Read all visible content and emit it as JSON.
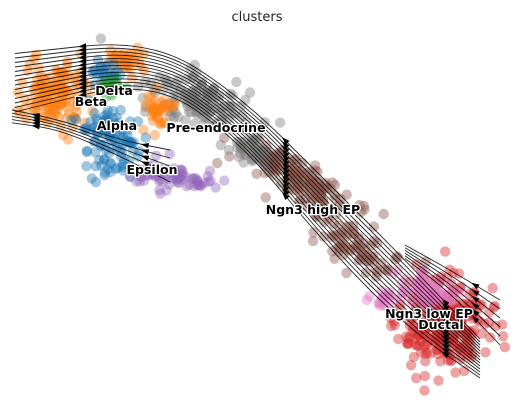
{
  "chart_data": {
    "type": "scatter",
    "title": "clusters",
    "xlabel": "",
    "ylabel": "",
    "grid": false,
    "legend": "on data",
    "streamlines": true,
    "clusters": [
      {
        "name": "Ductal",
        "color": "#d62728"
      },
      {
        "name": "Ngn3 low EP",
        "color": "#e377c2"
      },
      {
        "name": "Ngn3 high EP",
        "color": "#8c564b"
      },
      {
        "name": "Pre-endocrine",
        "color": "#7f7f7f"
      },
      {
        "name": "Beta",
        "color": "#ff7f0e"
      },
      {
        "name": "Alpha",
        "color": "#1f77b4"
      },
      {
        "name": "Delta",
        "color": "#2ca02c"
      },
      {
        "name": "Epsilon",
        "color": "#9467bd"
      }
    ],
    "labels": [
      {
        "text": "Delta"
      },
      {
        "text": "Beta"
      },
      {
        "text": "Alpha"
      },
      {
        "text": "Pre-endocrine"
      },
      {
        "text": "Epsilon"
      },
      {
        "text": "Ngn3 high EP"
      },
      {
        "text": "Ngn3 low EP"
      },
      {
        "text": "Ductal"
      }
    ]
  }
}
